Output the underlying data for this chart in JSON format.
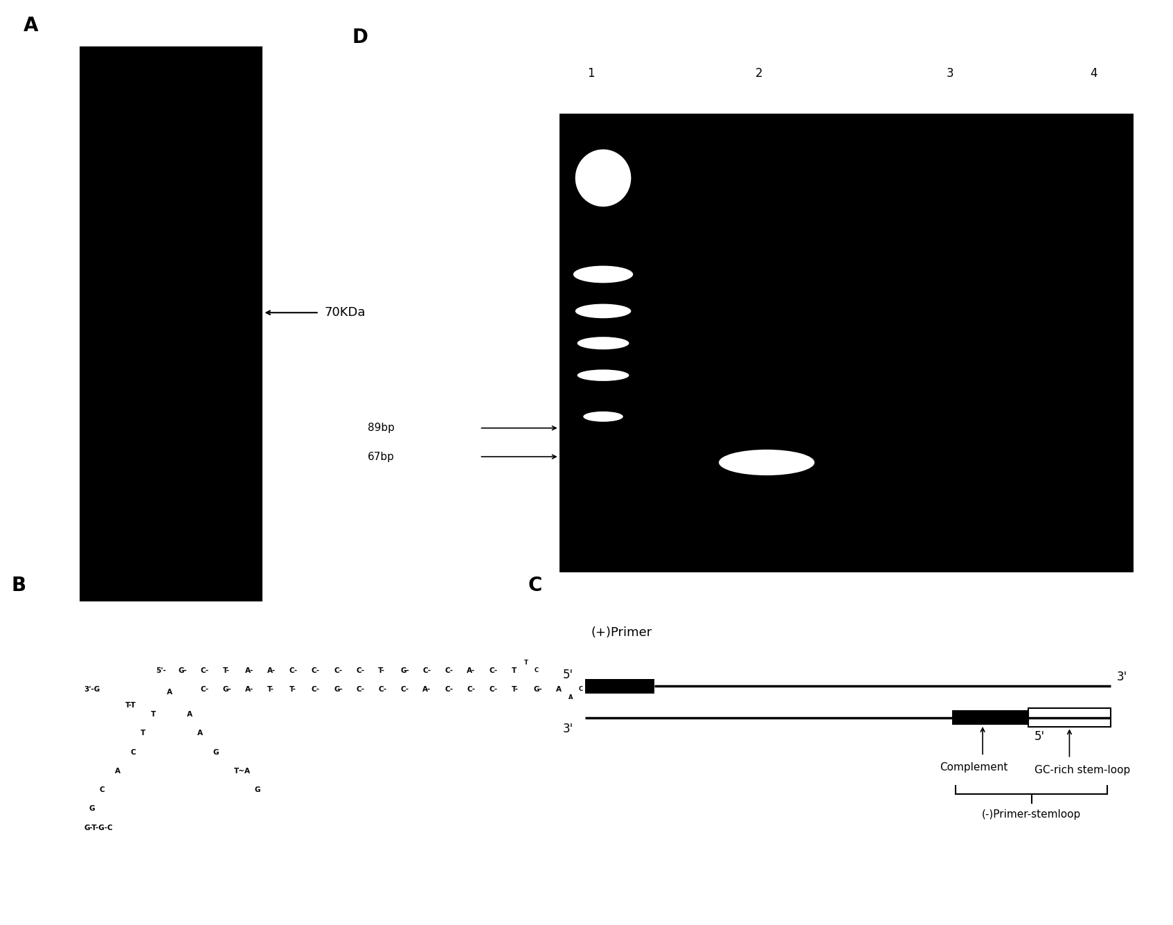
{
  "panel_A_label": "A",
  "panel_B_label": "B",
  "panel_C_label": "C",
  "panel_D_label": "D",
  "arrow_70kda": "70KDa",
  "gel_D_lanes": [
    "1",
    "2",
    "3",
    "4"
  ],
  "gel_D_labels_left": [
    "89bp",
    "67bp"
  ],
  "bg_color": "#ffffff",
  "black": "#000000",
  "white": "#ffffff",
  "panel_label_fontsize": 20,
  "annotation_fontsize": 12,
  "gel_label_fontsize": 12,
  "primer_label_plus": "(+)Primer",
  "primer_label_minus": "(-)Primer-stemloop",
  "complement_label": "Complement",
  "gcrich_label": "GC-rich stem-loop"
}
